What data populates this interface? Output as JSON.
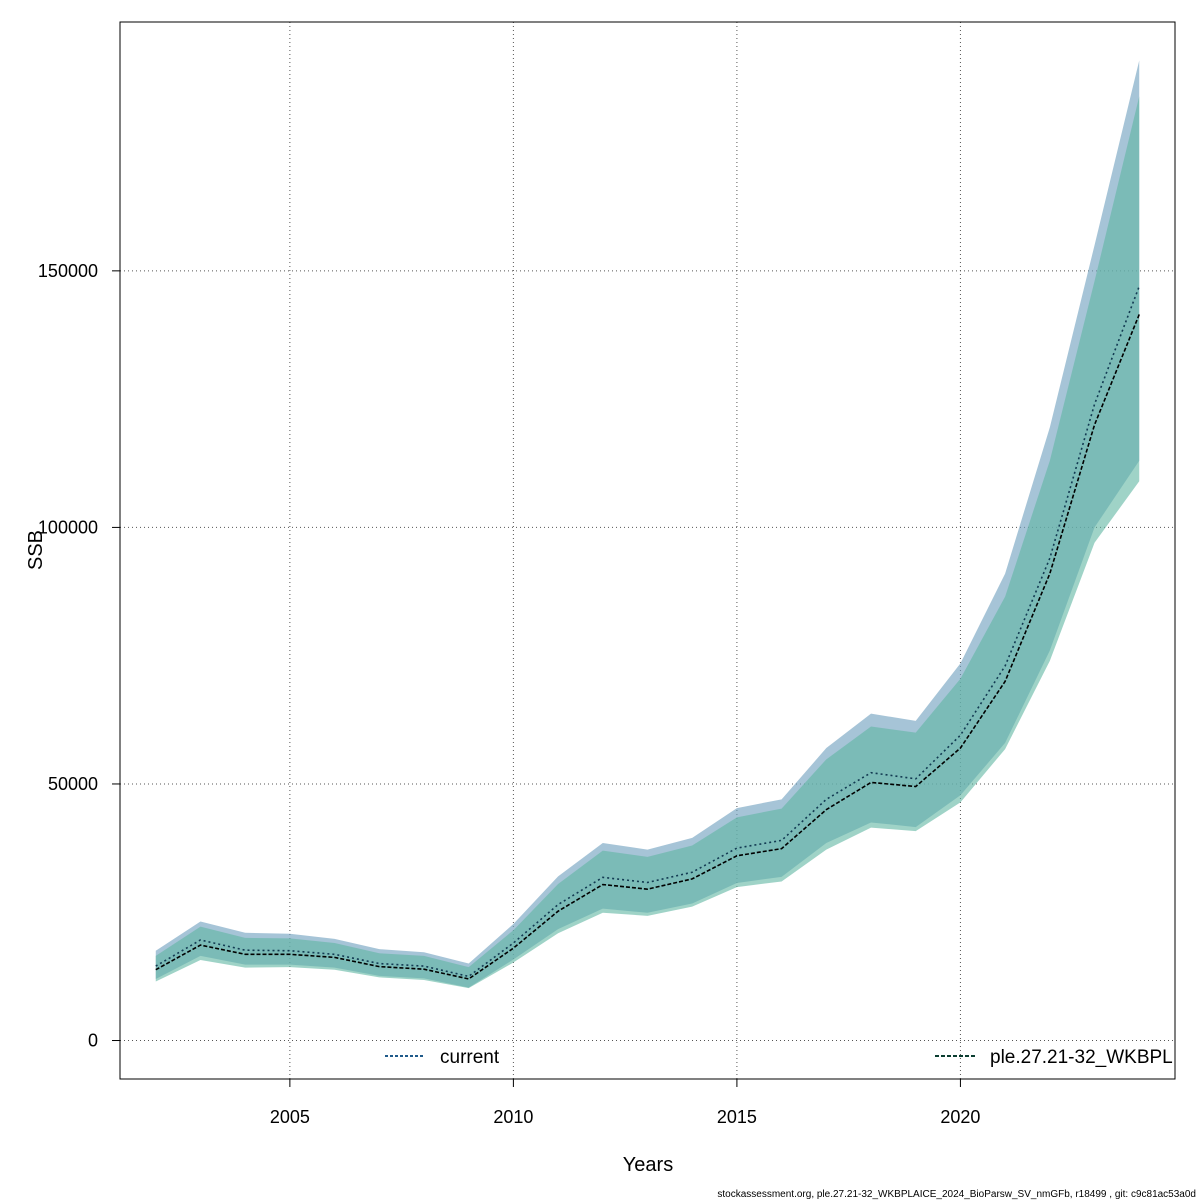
{
  "chart_data": {
    "type": "line",
    "xlabel": "Years",
    "ylabel": "SSB",
    "xlim": [
      2001.2,
      2024.8
    ],
    "ylim": [
      -7500,
      198500
    ],
    "xticks": [
      2005,
      2010,
      2015,
      2020
    ],
    "yticks": [
      0,
      50000,
      100000,
      150000
    ],
    "x_tick_labels": [
      "2005",
      "2010",
      "2015",
      "2020"
    ],
    "y_tick_labels": [
      "0",
      "50000",
      "100000",
      "150000"
    ],
    "grid": true,
    "legend_placement": "bottom",
    "x": [
      2002,
      2003,
      2004,
      2005,
      2006,
      2007,
      2008,
      2009,
      2010,
      2011,
      2012,
      2013,
      2014,
      2015,
      2016,
      2017,
      2018,
      2019,
      2020,
      2021,
      2022,
      2023,
      2024
    ],
    "series": [
      {
        "name": "current",
        "color": "#1f5a8a",
        "band_color": "#6f9fbf",
        "line_style": "dotted",
        "values": [
          14500,
          19600,
          17600,
          17500,
          16800,
          15000,
          14500,
          12500,
          19000,
          26500,
          31800,
          30800,
          32800,
          37500,
          39000,
          47000,
          52200,
          51000,
          59500,
          73000,
          94000,
          124000,
          147000
        ],
        "lower": [
          12000,
          16500,
          14800,
          14800,
          14200,
          12600,
          12100,
          10300,
          15800,
          21700,
          25700,
          24900,
          26700,
          30700,
          31900,
          38500,
          42500,
          41600,
          47800,
          58000,
          76000,
          100000,
          113000
        ],
        "upper": [
          17500,
          23200,
          21000,
          20800,
          19800,
          17800,
          17200,
          15000,
          22700,
          32000,
          38500,
          37200,
          39500,
          45300,
          47000,
          57000,
          63700,
          62300,
          73500,
          91000,
          119500,
          155000,
          191000
        ]
      },
      {
        "name": "ple.27.21-32_WKBPLAICE_2024_BioParsw_SV_nmGFb",
        "color": "#0a3d30",
        "band_color": "#5fb5a2",
        "line_style": "dashed",
        "values": [
          13800,
          18600,
          16800,
          16800,
          16200,
          14400,
          13900,
          12000,
          18000,
          25200,
          30400,
          29500,
          31500,
          36000,
          37400,
          45000,
          50300,
          49500,
          57000,
          70000,
          91000,
          120000,
          141500
        ],
        "lower": [
          11500,
          15700,
          14200,
          14300,
          13800,
          12300,
          11800,
          10200,
          15200,
          20900,
          24900,
          24300,
          26100,
          29900,
          31000,
          37200,
          41500,
          40800,
          46400,
          56800,
          74000,
          97000,
          109000
        ],
        "upper": [
          16500,
          22200,
          20000,
          19900,
          19000,
          17000,
          16500,
          14300,
          21500,
          30500,
          37000,
          35800,
          38000,
          43500,
          45200,
          54800,
          61200,
          60000,
          70500,
          86500,
          113000,
          148000,
          184000
        ]
      }
    ],
    "legend": {
      "current_label": "current",
      "run_label": "ple.27.21-32_WKBPL"
    }
  },
  "footer": "stockassessment.org, ple.27.21-32_WKBPLAICE_2024_BioParsw_SV_nmGFb, r18499 , git: c9c81ac53a0d"
}
